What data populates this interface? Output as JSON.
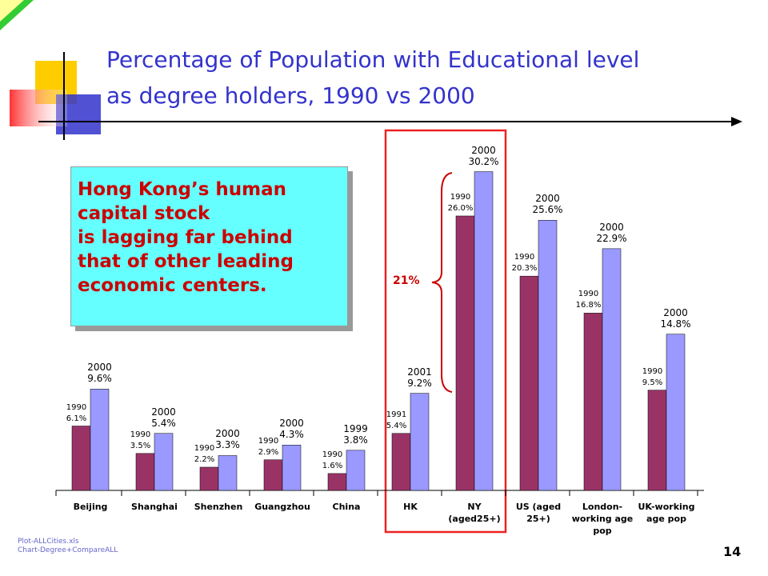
{
  "title": "Percentage of Population with Educational level\nas degree holders, 1990 vs 2000",
  "callout": "Hong Kong’s human\ncapital stock\nis lagging far behind\nthat of other leading\neconomic centers.",
  "gap_label": "21%",
  "footnote": "Plot-ALLCities.xls\nChart-Degree+CompareALL",
  "page_number": "14",
  "chart_data": {
    "type": "bar",
    "categories": [
      "Beijing",
      "Shanghai",
      "Shenzhen",
      "Guangzhou",
      "China",
      "HK",
      "NY\n(aged25+)",
      "US (aged\n25+)",
      "London-\nworking age\npop",
      "UK-working\nage pop"
    ],
    "series": [
      {
        "color": "#993366",
        "values": [
          6.1,
          3.5,
          2.2,
          2.9,
          1.6,
          5.4,
          26.0,
          20.3,
          16.8,
          9.5
        ],
        "value_labels": [
          "1990\n6.1%",
          "1990\n3.5%",
          "1990\n2.2%",
          "1990\n2.9%",
          "1990\n1.6%",
          "1991\n5.4%",
          "1990\n26.0%",
          "1990\n20.3%",
          "1990\n16.8%",
          "1990\n9.5%"
        ]
      },
      {
        "color": "#9999ff",
        "values": [
          9.6,
          5.4,
          3.3,
          4.3,
          3.8,
          9.2,
          30.2,
          25.6,
          22.9,
          14.8
        ],
        "value_labels": [
          "2000\n9.6%",
          "2000\n5.4%",
          "2000\n3.3%",
          "2000\n4.3%",
          "1999\n3.8%",
          "2001\n9.2%",
          "2000\n30.2%",
          "2000\n25.6%",
          "2000\n22.9%",
          "2000\n14.8%"
        ]
      }
    ],
    "ylim": [
      0,
      31
    ]
  }
}
